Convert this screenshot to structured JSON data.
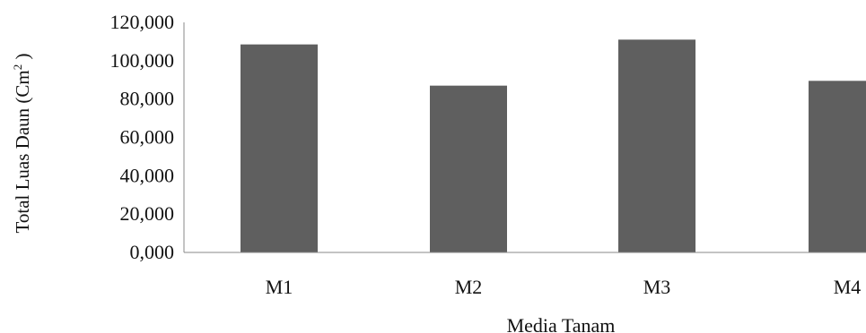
{
  "chart_data": {
    "type": "bar",
    "categories": [
      "M1",
      "M2",
      "M3",
      "M4"
    ],
    "values": [
      108.5,
      87.0,
      111.0,
      89.5
    ],
    "xlabel": "Media Tanam",
    "ylabel": "Total Luas Daun  (Cm",
    "ylabel_sup": "2",
    "ylabel_close": " )",
    "ylim": [
      0,
      120
    ],
    "yticks": [
      0,
      20,
      40,
      60,
      80,
      100,
      120
    ],
    "ytick_labels": [
      "0,000",
      "20,000",
      "40,000",
      "60,000",
      "80,000",
      "100,000",
      "120,000"
    ],
    "bar_color": "#5f5f5f",
    "axis_color": "#888888",
    "grid": false,
    "legend": "none"
  }
}
